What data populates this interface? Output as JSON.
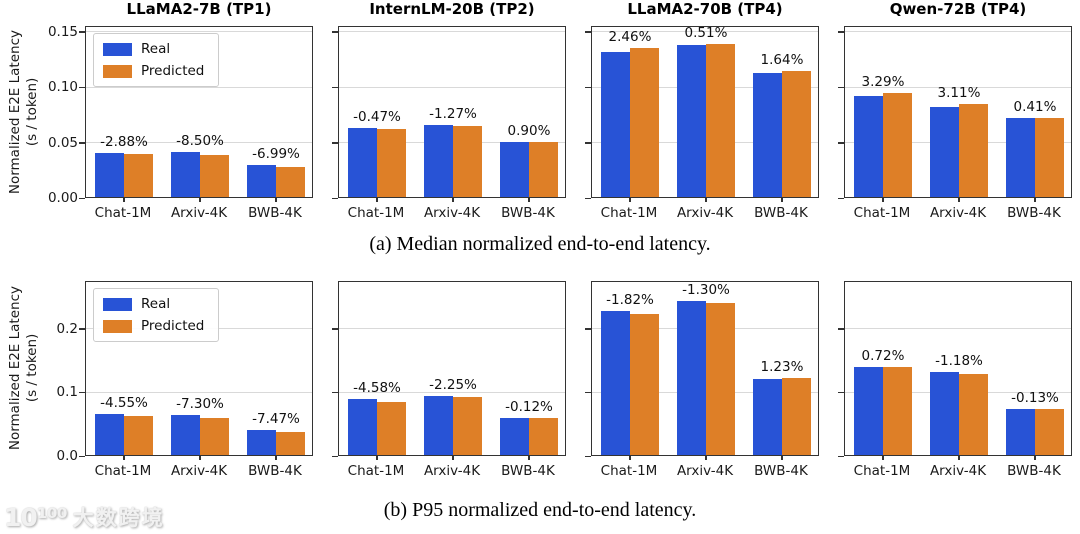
{
  "chart_data": {
    "type": "bar",
    "legend": [
      "Real",
      "Predicted"
    ],
    "colors": {
      "real": "#2853d6",
      "predicted": "#de7f27",
      "grid": "#d9d9d9"
    },
    "categories": [
      "Chat-1M",
      "Arxiv-4K",
      "BWB-4K"
    ],
    "ylabel_line1": "Normalized E2E Latency",
    "ylabel_line2": "(s / token)",
    "rows": [
      {
        "caption": "(a) Median normalized end-to-end latency.",
        "ylim": [
          0,
          0.155
        ],
        "yticks": [
          {
            "v": 0.0,
            "label": "0.00"
          },
          {
            "v": 0.05,
            "label": "0.05"
          },
          {
            "v": 0.1,
            "label": "0.10"
          },
          {
            "v": 0.15,
            "label": "0.15"
          }
        ],
        "panels": [
          {
            "title": "LLaMA2-7B (TP1)",
            "series": [
              {
                "name": "Real",
                "values": [
                  0.04,
                  0.041,
                  0.029
                ]
              },
              {
                "name": "Predicted",
                "values": [
                  0.039,
                  0.038,
                  0.027
                ]
              }
            ],
            "diff_labels": [
              "-2.88%",
              "-8.50%",
              "-6.99%"
            ],
            "show_legend": true
          },
          {
            "title": "InternLM-20B (TP2)",
            "series": [
              {
                "name": "Real",
                "values": [
                  0.062,
                  0.065,
                  0.05
                ]
              },
              {
                "name": "Predicted",
                "values": [
                  0.061,
                  0.064,
                  0.05
                ]
              }
            ],
            "diff_labels": [
              "-0.47%",
              "-1.27%",
              "0.90%"
            ],
            "show_legend": false
          },
          {
            "title": "LLaMA2-70B (TP4)",
            "series": [
              {
                "name": "Real",
                "values": [
                  0.131,
                  0.137,
                  0.112
                ]
              },
              {
                "name": "Predicted",
                "values": [
                  0.134,
                  0.138,
                  0.114
                ]
              }
            ],
            "diff_labels": [
              "2.46%",
              "0.51%",
              "1.64%"
            ],
            "show_legend": false
          },
          {
            "title": "Qwen-72B (TP4)",
            "series": [
              {
                "name": "Real",
                "values": [
                  0.091,
                  0.081,
                  0.071
                ]
              },
              {
                "name": "Predicted",
                "values": [
                  0.094,
                  0.084,
                  0.071
                ]
              }
            ],
            "diff_labels": [
              "3.29%",
              "3.11%",
              "0.41%"
            ],
            "show_legend": false
          }
        ]
      },
      {
        "caption": "(b) P95 normalized end-to-end latency.",
        "ylim": [
          0,
          0.275
        ],
        "yticks": [
          {
            "v": 0.0,
            "label": "0.0"
          },
          {
            "v": 0.1,
            "label": "0.1"
          },
          {
            "v": 0.2,
            "label": "0.2"
          }
        ],
        "panels": [
          {
            "title": "",
            "series": [
              {
                "name": "Real",
                "values": [
                  0.065,
                  0.063,
                  0.039
                ]
              },
              {
                "name": "Predicted",
                "values": [
                  0.062,
                  0.058,
                  0.036
                ]
              }
            ],
            "diff_labels": [
              "-4.55%",
              "-7.30%",
              "-7.47%"
            ],
            "show_legend": true
          },
          {
            "title": "",
            "series": [
              {
                "name": "Real",
                "values": [
                  0.088,
                  0.093,
                  0.058
                ]
              },
              {
                "name": "Predicted",
                "values": [
                  0.084,
                  0.091,
                  0.058
                ]
              }
            ],
            "diff_labels": [
              "-4.58%",
              "-2.25%",
              "-0.12%"
            ],
            "show_legend": false
          },
          {
            "title": "",
            "series": [
              {
                "name": "Real",
                "values": [
                  0.226,
                  0.242,
                  0.119
                ]
              },
              {
                "name": "Predicted",
                "values": [
                  0.222,
                  0.239,
                  0.121
                ]
              }
            ],
            "diff_labels": [
              "-1.82%",
              "-1.30%",
              "1.23%"
            ],
            "show_legend": false
          },
          {
            "title": "",
            "series": [
              {
                "name": "Real",
                "values": [
                  0.138,
                  0.13,
                  0.073
                ]
              },
              {
                "name": "Predicted",
                "values": [
                  0.139,
                  0.128,
                  0.073
                ]
              }
            ],
            "diff_labels": [
              "0.72%",
              "-1.18%",
              "-0.13%"
            ],
            "show_legend": false
          }
        ]
      }
    ]
  },
  "watermark": {
    "logo": "10¹⁰⁰",
    "text": "大数跨境"
  }
}
